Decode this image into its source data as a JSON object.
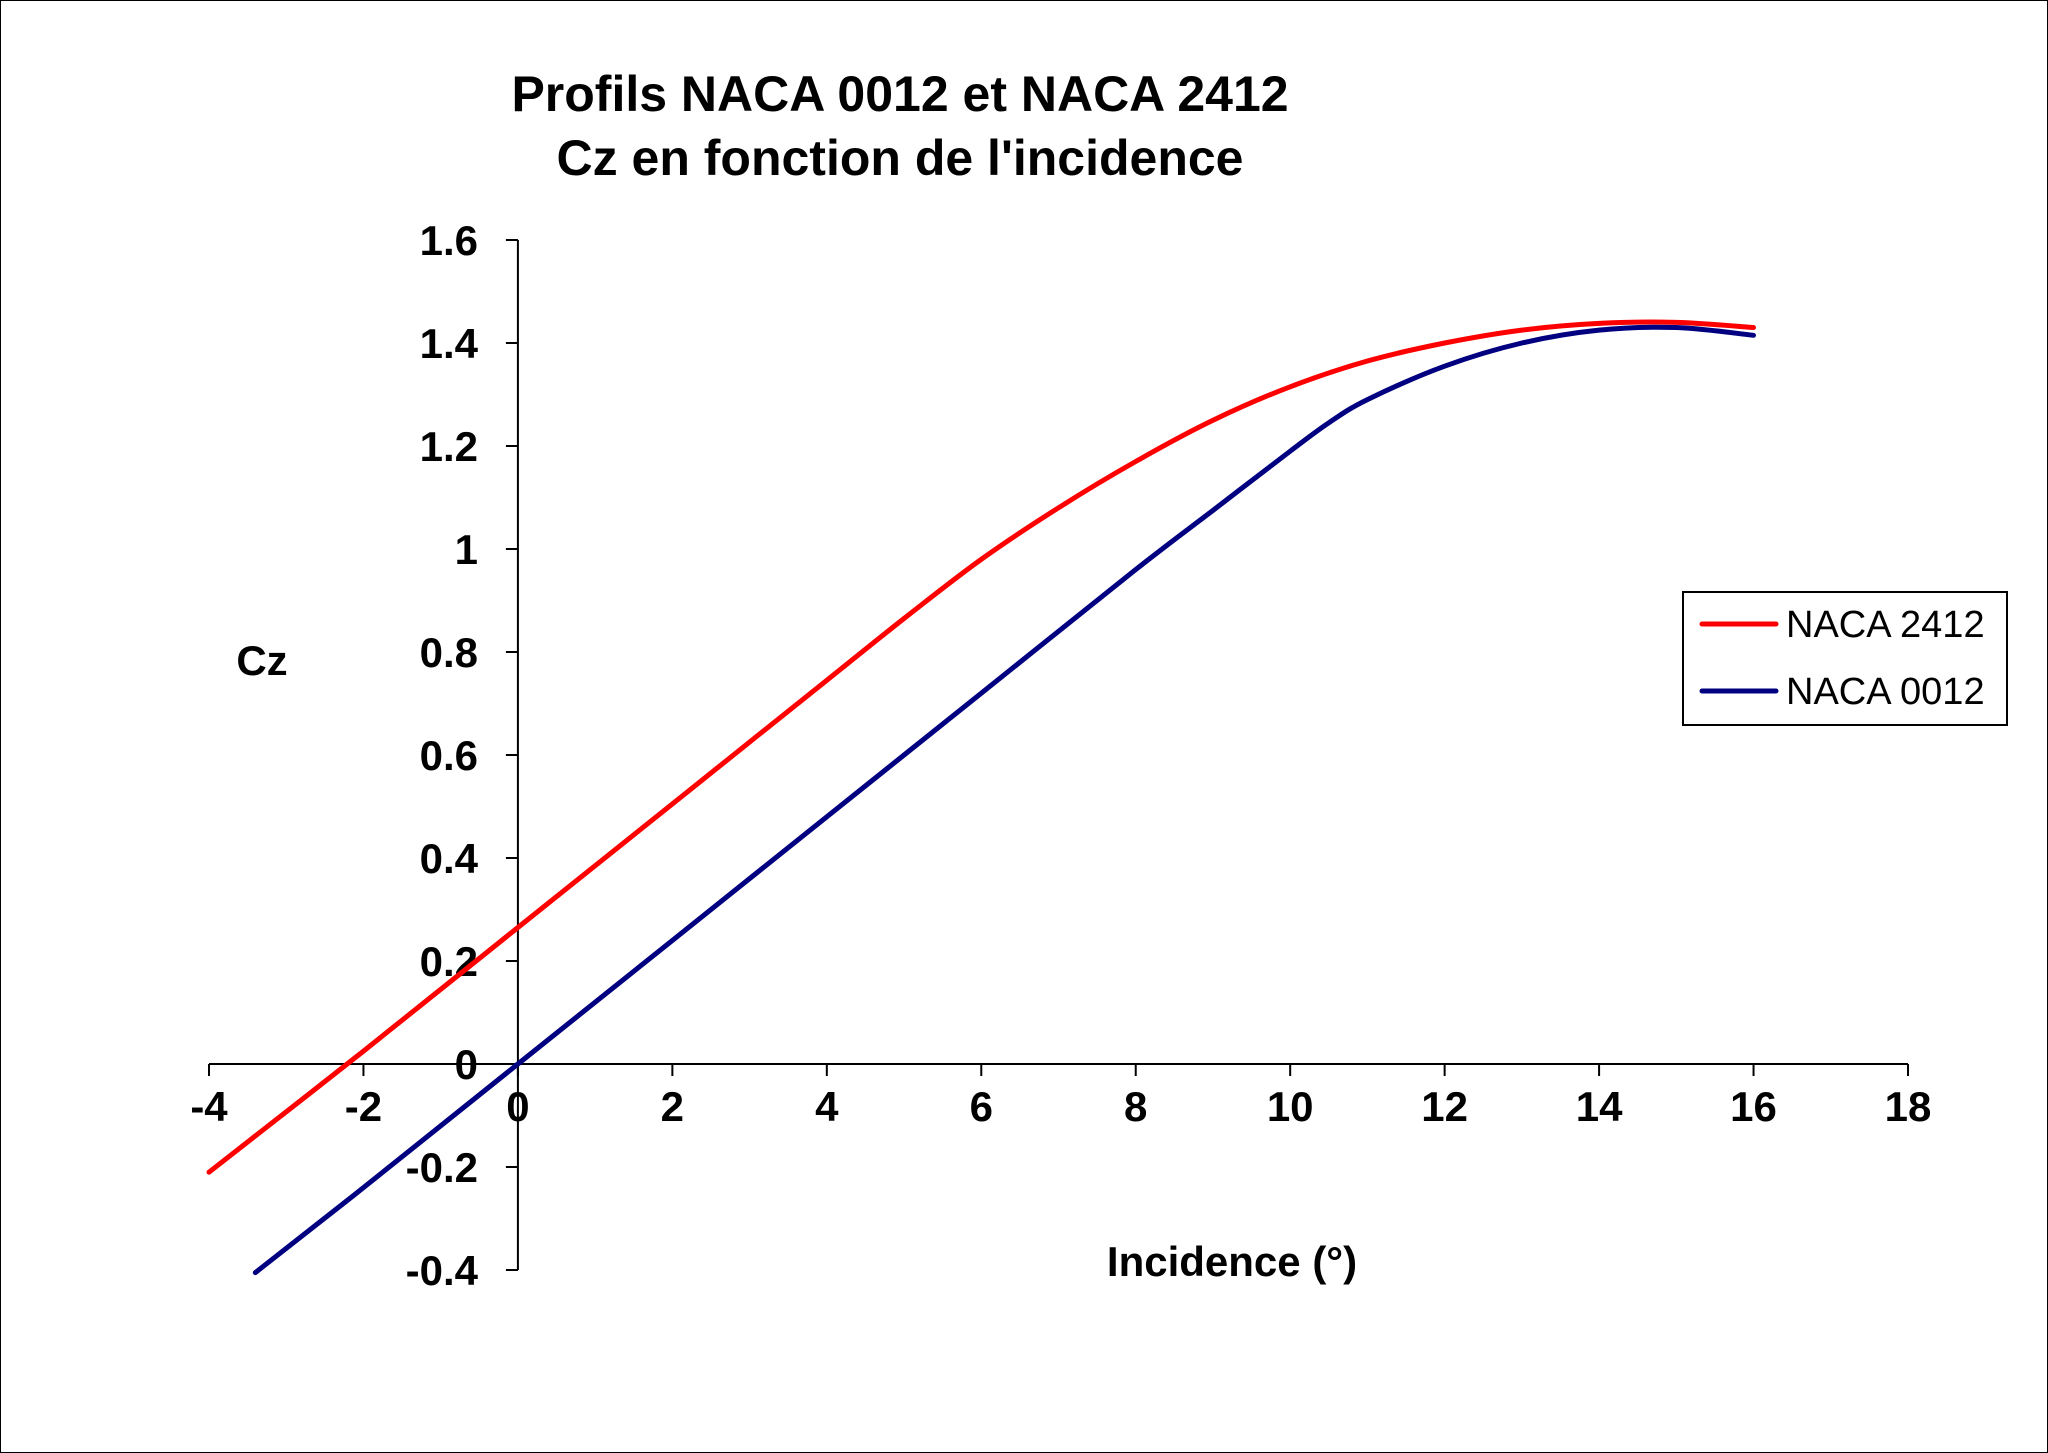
{
  "chart_data": {
    "type": "line",
    "title": "Profils NACA 0012 et NACA 2412",
    "subtitle": "Cz en fonction de l'incidence",
    "xlabel": "Incidence (°)",
    "ylabel": "Cz",
    "xlim": [
      -4,
      18
    ],
    "ylim": [
      -0.4,
      1.6
    ],
    "xticks": [
      "-4",
      "-2",
      "0",
      "2",
      "4",
      "6",
      "8",
      "10",
      "12",
      "14",
      "16",
      "18"
    ],
    "yticks": [
      "1.6",
      "1.4",
      "1.2",
      "1",
      "0.8",
      "0.6",
      "0.4",
      "0.2",
      "0",
      "-0.2",
      "-0.4"
    ],
    "legend_position": "right",
    "series": [
      {
        "name": "NACA 2412",
        "color": "#ff0000",
        "x": [
          -4,
          -2,
          0,
          2,
          4,
          5,
          6,
          7,
          8,
          9,
          10,
          11,
          12,
          13,
          14,
          15,
          16
        ],
        "y": [
          -0.21,
          0.025,
          0.265,
          0.505,
          0.745,
          0.865,
          0.98,
          1.08,
          1.17,
          1.25,
          1.315,
          1.365,
          1.4,
          1.425,
          1.438,
          1.44,
          1.43
        ]
      },
      {
        "name": "NACA 0012",
        "color": "#000080",
        "x": [
          -3.4,
          -2,
          0,
          2,
          4,
          6,
          8,
          9,
          10,
          10.5,
          11,
          12,
          13,
          14,
          15,
          16
        ],
        "y": [
          -0.405,
          -0.24,
          0.0,
          0.24,
          0.48,
          0.72,
          0.96,
          1.075,
          1.19,
          1.245,
          1.29,
          1.355,
          1.4,
          1.425,
          1.43,
          1.415
        ]
      }
    ]
  }
}
